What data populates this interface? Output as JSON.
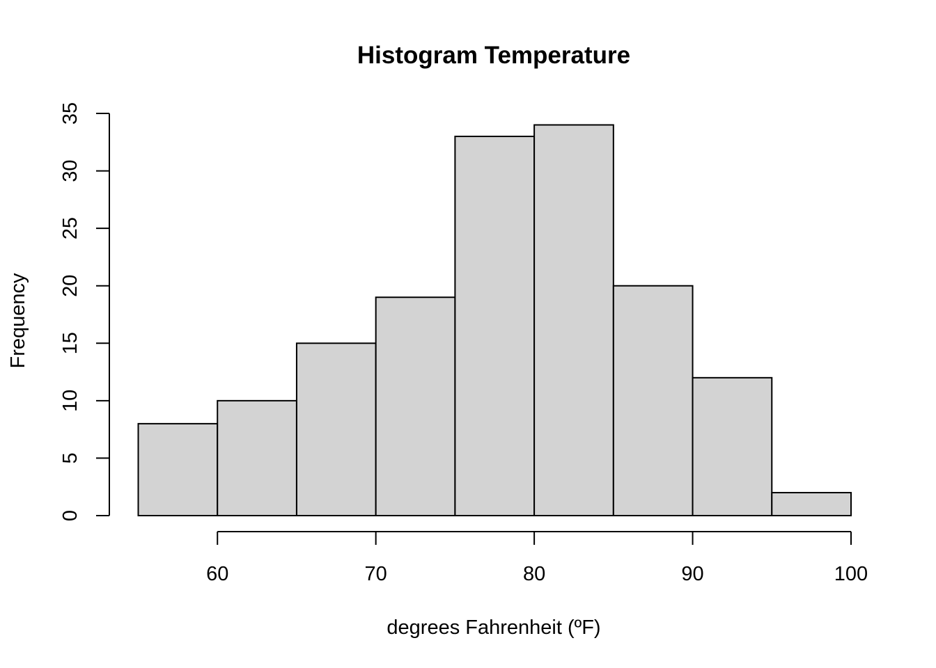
{
  "chart_data": {
    "type": "bar",
    "title": "Histogram Temperature",
    "xlabel": "degrees Fahrenheit (ºF)",
    "ylabel": "Frequency",
    "bins": [
      {
        "from": 55,
        "to": 60,
        "count": 8
      },
      {
        "from": 60,
        "to": 65,
        "count": 10
      },
      {
        "from": 65,
        "to": 70,
        "count": 15
      },
      {
        "from": 70,
        "to": 75,
        "count": 19
      },
      {
        "from": 75,
        "to": 80,
        "count": 33
      },
      {
        "from": 80,
        "to": 85,
        "count": 34
      },
      {
        "from": 85,
        "to": 90,
        "count": 20
      },
      {
        "from": 90,
        "to": 95,
        "count": 12
      },
      {
        "from": 95,
        "to": 100,
        "count": 2
      }
    ],
    "x_ticks": [
      60,
      70,
      80,
      90,
      100
    ],
    "y_ticks": [
      0,
      5,
      10,
      15,
      20,
      25,
      30,
      35
    ],
    "xlim": [
      55,
      100
    ],
    "ylim": [
      0,
      35
    ],
    "grid": false,
    "bar_color": "#d3d3d3",
    "edge_color": "#000000"
  }
}
